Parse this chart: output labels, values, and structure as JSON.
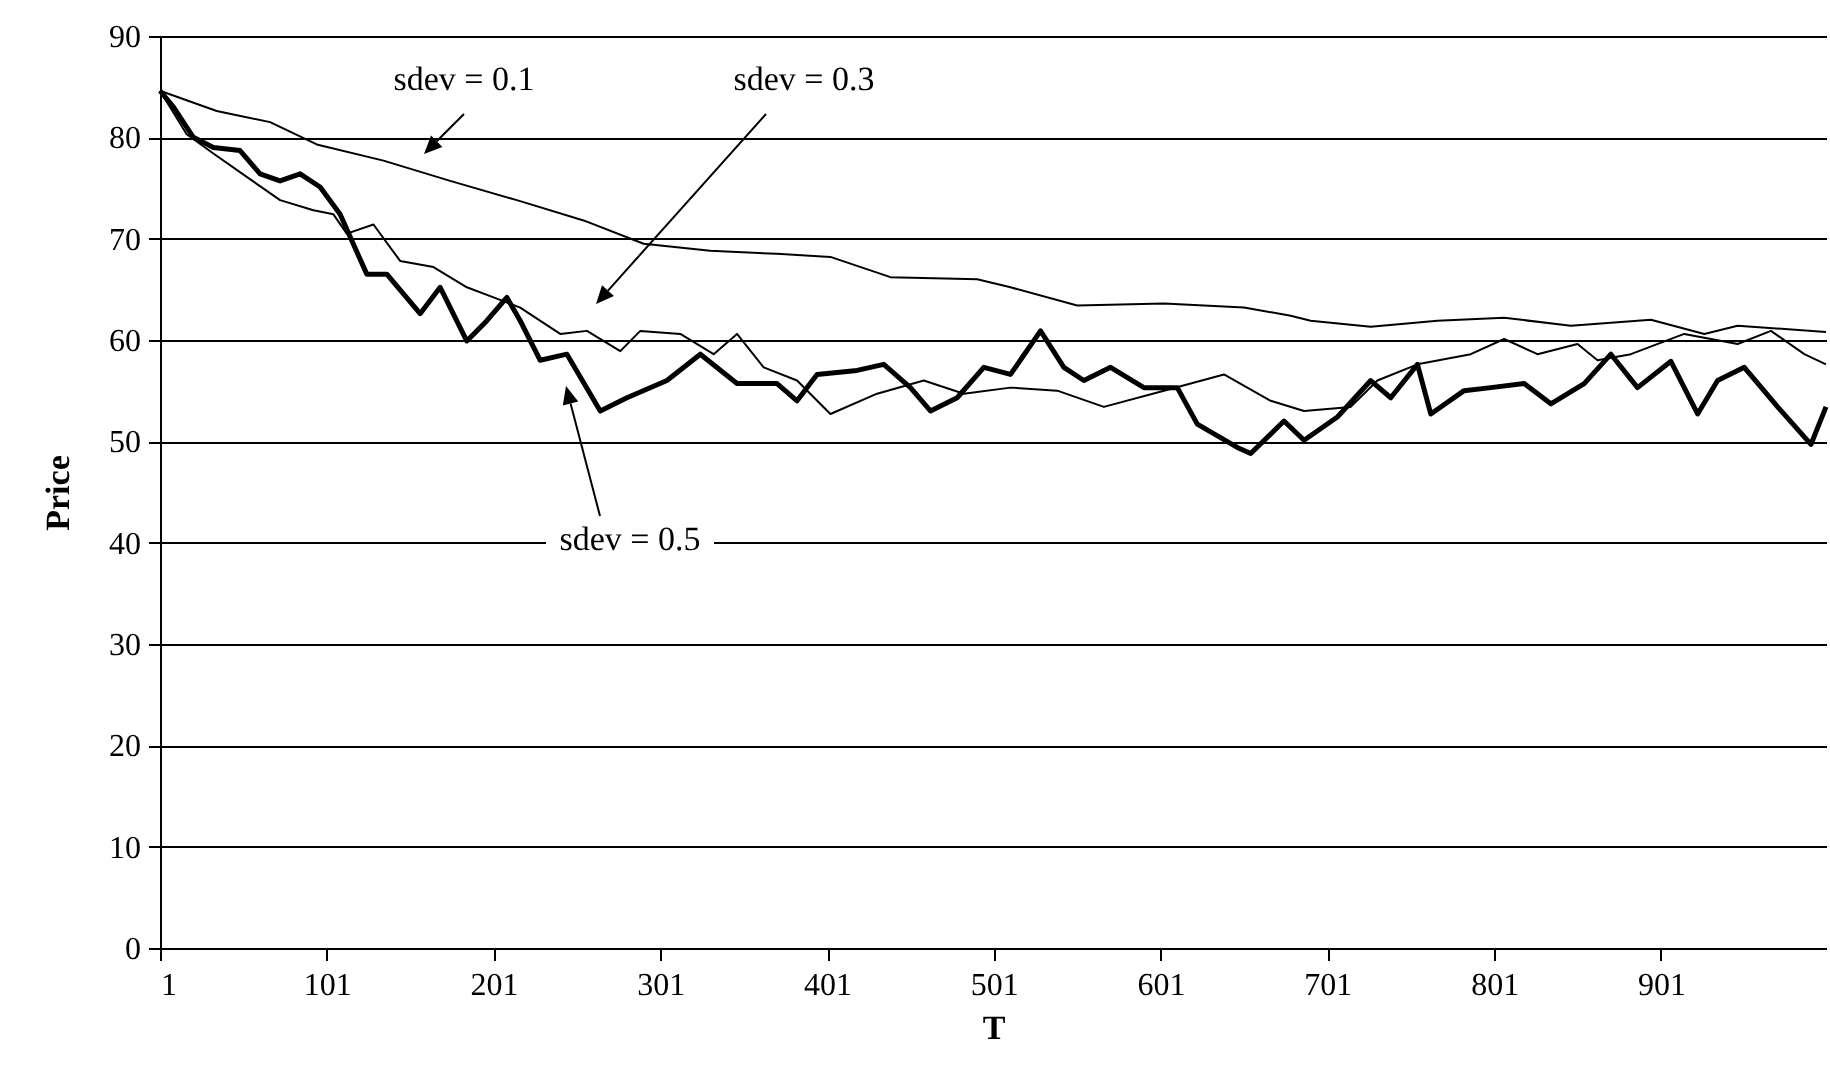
{
  "chart_data": {
    "type": "line",
    "xlabel": "T",
    "ylabel": "Price",
    "xlim": [
      1,
      1000
    ],
    "ylim": [
      0,
      90
    ],
    "xticks": [
      1,
      101,
      201,
      301,
      401,
      501,
      601,
      701,
      801,
      901
    ],
    "yticks": [
      0,
      10,
      20,
      30,
      40,
      50,
      60,
      70,
      80,
      90
    ],
    "grid": "y",
    "line_style": "solid",
    "marker": "none",
    "series": [
      {
        "color": "#000000",
        "x": [
          1,
          35,
          67,
          95,
          135,
          175,
          215,
          255,
          291,
          331,
          371,
          403,
          439,
          491,
          511,
          551,
          603,
          651,
          679,
          691,
          727,
          767,
          807,
          847,
          895,
          927,
          947,
          1000
        ],
        "values": [
          84.6,
          82.6,
          81.5,
          79.3,
          77.7,
          75.7,
          73.8,
          71.8,
          69.5,
          68.8,
          68.5,
          68.2,
          66.2,
          66.0,
          65.2,
          63.4,
          63.6,
          63.2,
          62.4,
          61.9,
          61.3,
          61.9,
          62.2,
          61.4,
          62.0,
          60.6,
          61.4,
          60.8
        ]
      },
      {
        "color": "#000000",
        "x": [
          1,
          17,
          33,
          53,
          73,
          93,
          105,
          113,
          129,
          145,
          165,
          185,
          201,
          217,
          241,
          257,
          277,
          289,
          313,
          333,
          347,
          363,
          383,
          403,
          431,
          459,
          483,
          511,
          539,
          567,
          603,
          639,
          667,
          687,
          715,
          731,
          755,
          787,
          807,
          827,
          851,
          863,
          883,
          915,
          947,
          967,
          987,
          1000
        ],
        "values": [
          84.6,
          80.3,
          78.4,
          76.1,
          73.8,
          72.8,
          72.4,
          70.5,
          71.4,
          67.8,
          67.2,
          65.2,
          64.2,
          63.2,
          60.6,
          60.9,
          58.9,
          60.9,
          60.6,
          58.6,
          60.6,
          57.3,
          56.0,
          52.7,
          54.7,
          56.0,
          54.7,
          55.3,
          55.0,
          53.4,
          55.0,
          56.6,
          54.0,
          53.0,
          53.4,
          56.0,
          57.6,
          58.6,
          60.1,
          58.6,
          59.6,
          58.0,
          58.6,
          60.6,
          59.6,
          60.9,
          58.6,
          57.6
        ]
      },
      {
        "color": "#000000",
        "x": [
          1,
          9,
          21,
          33,
          49,
          61,
          73,
          85,
          97,
          109,
          125,
          137,
          157,
          169,
          185,
          197,
          209,
          217,
          229,
          245,
          265,
          281,
          305,
          325,
          347,
          371,
          383,
          395,
          419,
          435,
          451,
          463,
          479,
          495,
          511,
          529,
          543,
          555,
          571,
          591,
          611,
          623,
          647,
          655,
          675,
          687,
          707,
          727,
          739,
          755,
          763,
          783,
          799,
          819,
          835,
          855,
          871,
          887,
          907,
          923,
          935,
          951,
          971,
          991,
          1000
        ],
        "values": [
          84.6,
          83.0,
          80.0,
          79.0,
          78.7,
          76.4,
          75.7,
          76.4,
          75.1,
          72.4,
          66.5,
          66.5,
          62.6,
          65.2,
          59.9,
          61.9,
          64.2,
          61.9,
          58.0,
          58.6,
          53.0,
          54.3,
          56.0,
          58.6,
          55.7,
          55.7,
          54.0,
          56.6,
          57.0,
          57.6,
          55.3,
          53.0,
          54.3,
          57.3,
          56.6,
          60.9,
          57.3,
          56.0,
          57.3,
          55.3,
          55.3,
          51.7,
          49.4,
          48.8,
          52.0,
          50.1,
          52.4,
          56.0,
          54.3,
          57.6,
          52.7,
          55.0,
          55.3,
          55.7,
          53.7,
          55.7,
          58.6,
          55.3,
          57.9,
          52.7,
          56.0,
          57.3,
          53.4,
          49.7,
          53.4
        ]
      }
    ],
    "annotations": [
      "sdev = 0.1",
      "sdev = 0.3",
      "sdev = 0.5"
    ]
  }
}
